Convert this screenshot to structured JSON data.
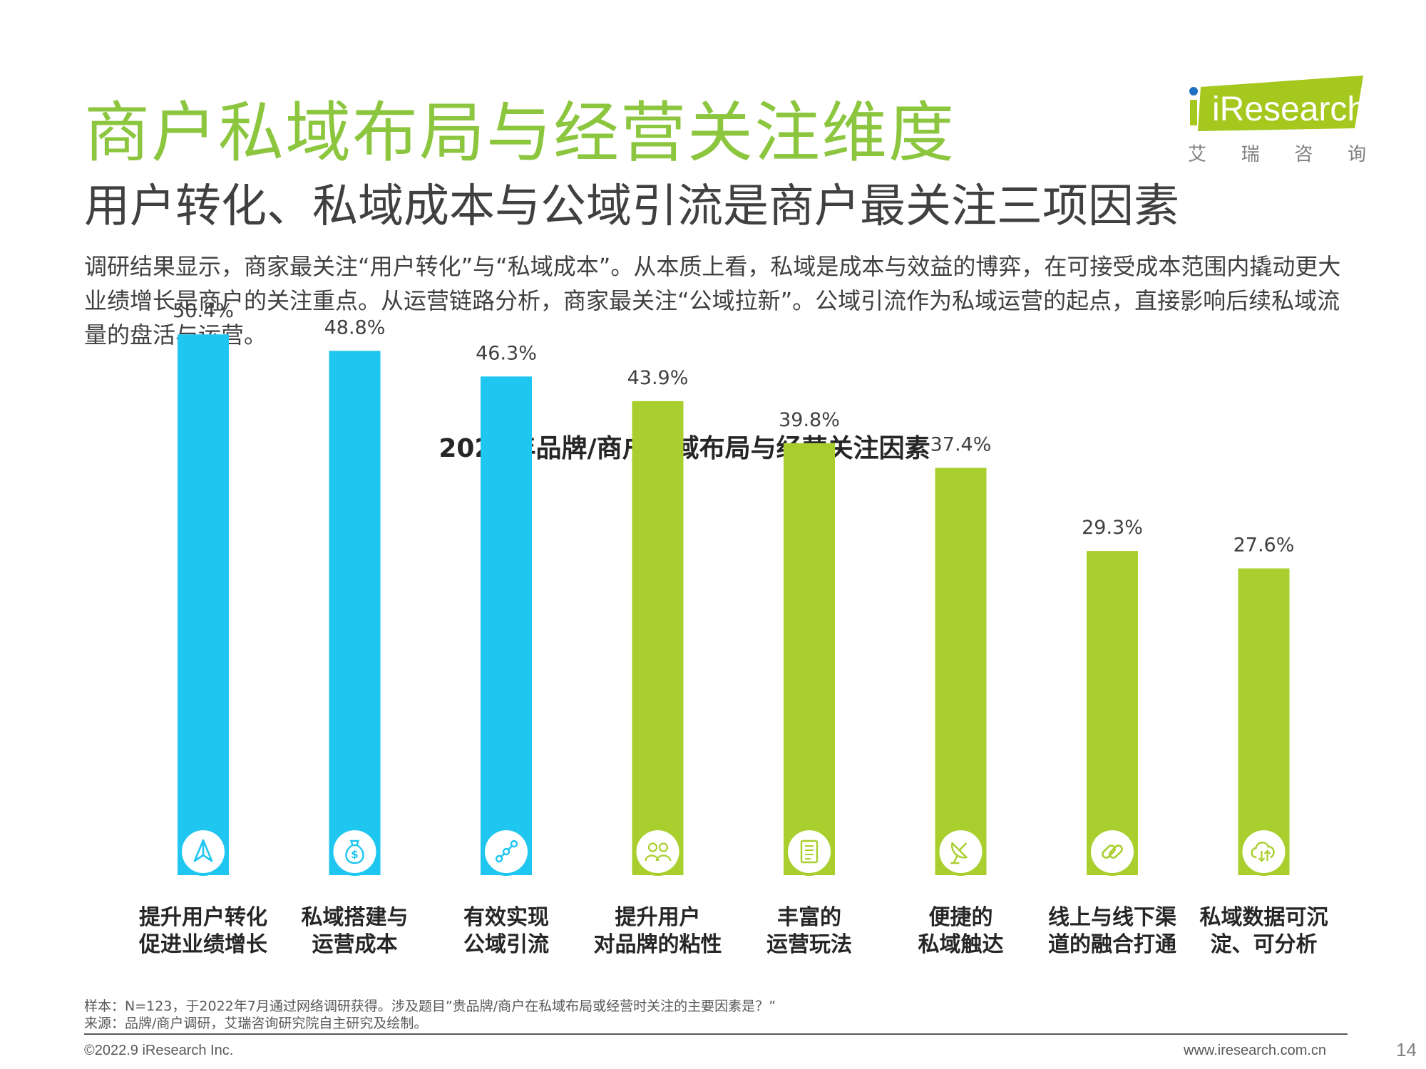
{
  "header": {
    "title": "商户私域布局与经营关注维度",
    "subtitle": "用户转化、私域成本与公域引流是商户最关注三项因素",
    "description": "调研结果显示，商家最关注“用户转化”与“私域成本”。从本质上看，私域是成本与效益的博弈，在可接受成本范围内撬动更大业绩增长是商户的关注重点。从运营链路分析，商家最关注“公域拉新”。公域引流作为私域运营的起点，直接影响后续私域流量的盘活与运营。"
  },
  "logo": {
    "word": "iResearch",
    "chars": [
      "艾",
      "瑞",
      "咨",
      "询"
    ],
    "color": "#a5c81e"
  },
  "chart_data": {
    "type": "bar",
    "title": "2022年品牌/商户私域布局与经营关注因素",
    "categories": [
      [
        "提升用户转化",
        "促进业绩增长"
      ],
      [
        "私域搭建与",
        "运营成本"
      ],
      [
        "有效实现",
        "公域引流"
      ],
      [
        "提升用户",
        "对品牌的粘性"
      ],
      [
        "丰富的",
        "运营玩法"
      ],
      [
        "便捷的",
        "私域触达"
      ],
      [
        "线上与线下渠",
        "道的融合打通"
      ],
      [
        "私域数据可沉",
        "淀、可分析"
      ]
    ],
    "values": [
      50.4,
      48.8,
      46.3,
      43.9,
      39.8,
      37.4,
      29.3,
      27.6
    ],
    "labels": [
      "50.4%",
      "48.8%",
      "46.3%",
      "43.9%",
      "39.8%",
      "37.4%",
      "29.3%",
      "27.6%"
    ],
    "unit": "%",
    "highlight_count": 3,
    "colors": {
      "highlight": "#1ec6f0",
      "normal": "#a9cf2e"
    },
    "icons": [
      "navigation-arrow-icon",
      "money-bag-icon",
      "flow-nodes-icon",
      "users-icon",
      "document-icon",
      "satellite-dish-icon",
      "link-icon",
      "cloud-sync-icon"
    ],
    "grid": false,
    "legend": "none"
  },
  "footer": {
    "note_sample": "样本：N=123，于2022年7月通过网络调研获得。涉及题目”贵品牌/商户在私域布局或经营时关注的主要因素是？”",
    "note_source": "来源：品牌/商户调研，艾瑞咨询研究院自主研究及绘制。",
    "copyright": "©2022.9 iResearch Inc.",
    "website": "www.iresearch.com.cn",
    "page": "14"
  }
}
